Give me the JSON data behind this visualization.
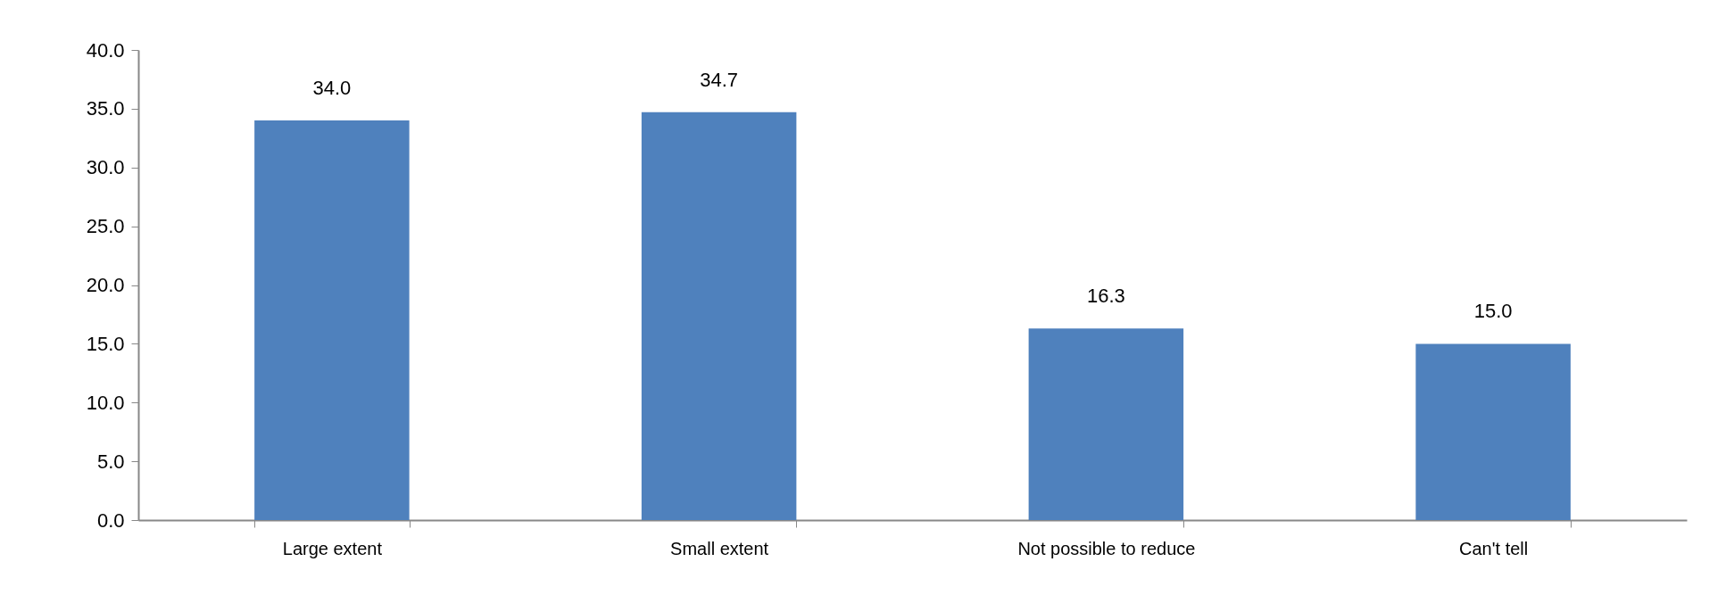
{
  "chart_data": {
    "type": "bar",
    "categories": [
      "Large extent",
      "Small extent",
      "Not possible  to reduce",
      "Can't tell"
    ],
    "values": [
      34.0,
      34.7,
      16.3,
      15.0
    ],
    "color": "#4f81bd",
    "value_labels": [
      "34.0",
      "34.7",
      "16.3",
      "15.0"
    ],
    "ylim": [
      0,
      40
    ],
    "yticks": [
      {
        "value": 0,
        "label": "0.0"
      },
      {
        "value": 5,
        "label": "5.0"
      },
      {
        "value": 10,
        "label": "10.0"
      },
      {
        "value": 15,
        "label": "15.0"
      },
      {
        "value": 20,
        "label": "20.0"
      },
      {
        "value": 25,
        "label": "25.0"
      },
      {
        "value": 30,
        "label": "30.0"
      },
      {
        "value": 35,
        "label": "35.0"
      },
      {
        "value": 40,
        "label": "40.0"
      }
    ],
    "grid": false
  }
}
